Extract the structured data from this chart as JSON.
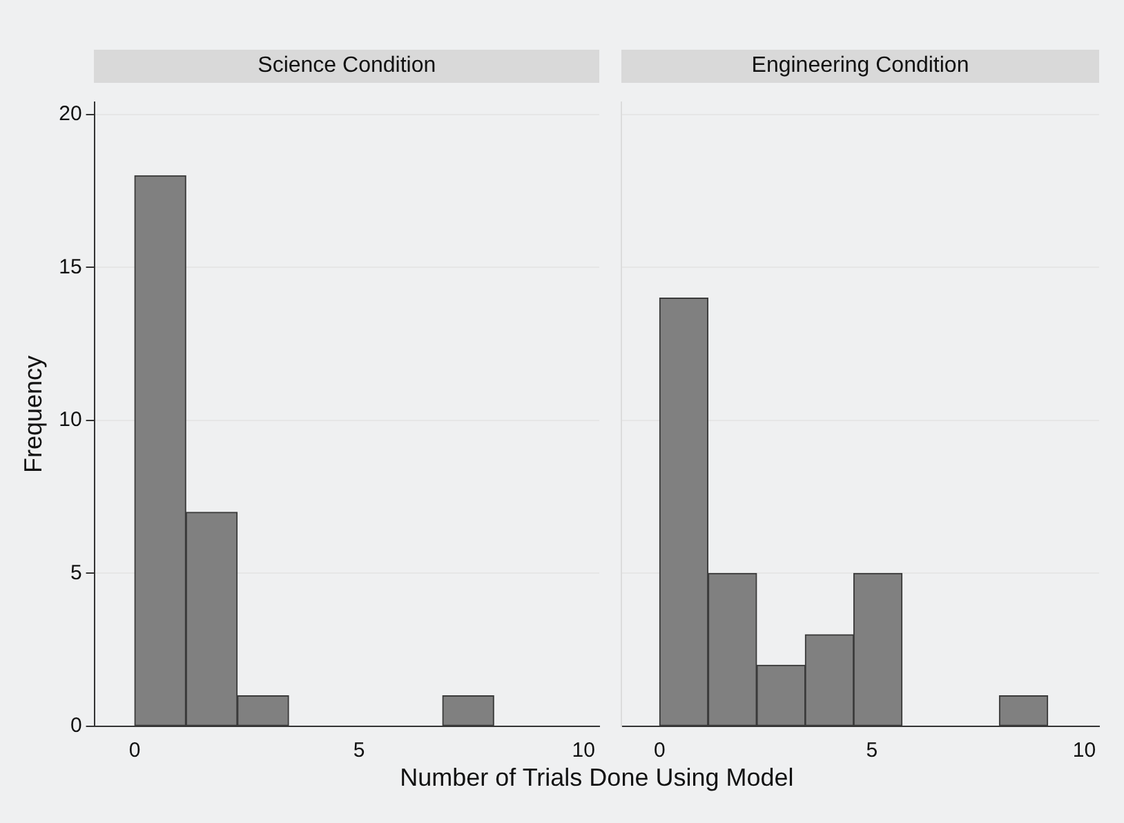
{
  "chart_data": [
    {
      "type": "histogram",
      "title": "Science Condition",
      "xlabel": "Number of Trials Done Using Model",
      "ylabel": "Frequency",
      "bins": [
        0,
        1.14,
        2.29,
        3.43,
        4.57,
        5.71,
        6.86,
        8
      ],
      "values": [
        18,
        7,
        1,
        0,
        0,
        0,
        1
      ],
      "color": "#808080",
      "xlim": [
        -0.9,
        10.35
      ],
      "xticks": [
        0,
        5,
        10
      ],
      "ylim": [
        0,
        20.4
      ],
      "yticks": [
        0,
        5,
        10,
        15,
        20
      ],
      "grid": "y"
    },
    {
      "type": "histogram",
      "title": "Engineering Condition",
      "bins": [
        0,
        1.14,
        2.29,
        3.43,
        4.57,
        5.71,
        6.86,
        8,
        9.14
      ],
      "values": [
        14,
        5,
        2,
        3,
        5,
        0,
        0,
        1
      ],
      "color": "#808080",
      "xlim": [
        -0.9,
        10.35
      ],
      "xticks": [
        0,
        5,
        10
      ],
      "ylim": [
        0,
        20.4
      ],
      "yticks": [
        0,
        5,
        10,
        15,
        20
      ],
      "grid": "y",
      "tick_labels": "x"
    }
  ]
}
